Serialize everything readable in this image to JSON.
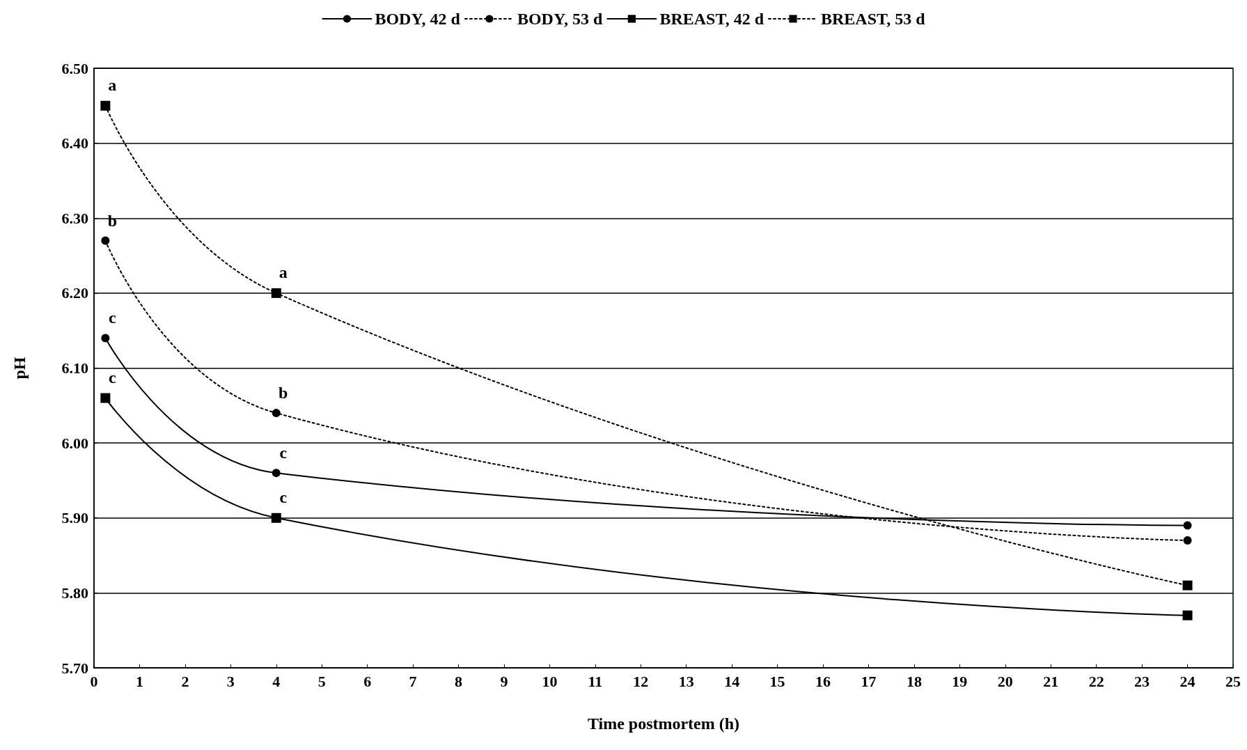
{
  "chart_data": {
    "type": "line",
    "xlabel": "Time postmortem (h)",
    "ylabel": "pH",
    "x": [
      0.25,
      4,
      24
    ],
    "series": [
      {
        "name": "BODY, 42 d",
        "color": "#000000",
        "values": [
          6.14,
          5.96,
          5.89
        ],
        "value_labels": [
          "c",
          "c",
          null
        ],
        "marker": "circle",
        "line_style": "solid"
      },
      {
        "name": "BODY, 53 d",
        "color": "#000000",
        "values": [
          6.27,
          6.04,
          5.87
        ],
        "value_labels": [
          "b",
          "b",
          null
        ],
        "marker": "circle",
        "line_style": "dotted"
      },
      {
        "name": "BREAST, 42 d",
        "color": "#000000",
        "values": [
          6.06,
          5.9,
          5.77
        ],
        "value_labels": [
          "c",
          "c",
          null
        ],
        "marker": "square",
        "line_style": "solid"
      },
      {
        "name": "BREAST, 53 d",
        "color": "#000000",
        "values": [
          6.45,
          6.2,
          5.81
        ],
        "value_labels": [
          "a",
          "a",
          null
        ],
        "marker": "square",
        "line_style": "dotted"
      }
    ],
    "xlim": [
      0,
      25
    ],
    "xticks": [
      0,
      1,
      2,
      3,
      4,
      5,
      6,
      7,
      8,
      9,
      10,
      11,
      12,
      13,
      14,
      15,
      16,
      17,
      18,
      19,
      20,
      21,
      22,
      23,
      24,
      25
    ],
    "ylim": [
      5.7,
      6.5
    ],
    "yticks": [
      {
        "value": 5.7,
        "label": "5.70"
      },
      {
        "value": 5.8,
        "label": "5.80"
      },
      {
        "value": 5.9,
        "label": "5.90"
      },
      {
        "value": 6.0,
        "label": "6.00"
      },
      {
        "value": 6.1,
        "label": "6.10"
      },
      {
        "value": 6.2,
        "label": "6.20"
      },
      {
        "value": 6.3,
        "label": "6.30"
      },
      {
        "value": 6.4,
        "label": "6.40"
      },
      {
        "value": 6.5,
        "label": "6.50"
      }
    ],
    "grid": "y",
    "legend": "top"
  }
}
